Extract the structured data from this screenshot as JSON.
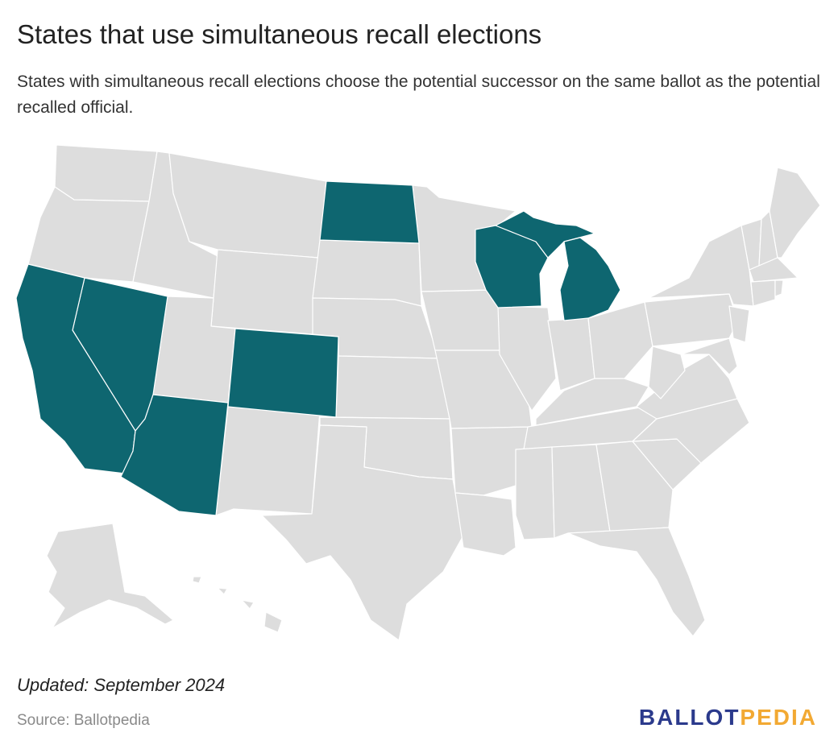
{
  "title": "States that use simultaneous recall elections",
  "subtitle": "States with simultaneous recall elections choose the potential successor on the same ballot as the potential recalled official.",
  "footer": {
    "updated": "Updated: September 2024",
    "source": "Source: Ballotpedia"
  },
  "logo": {
    "part1": "BALLOT",
    "part2": "PEDIA"
  },
  "colors": {
    "highlight": "#0e6670",
    "other": "#dddddd",
    "border": "#ffffff"
  },
  "map": {
    "highlighted_states": [
      "California",
      "Nevada",
      "Arizona",
      "Colorado",
      "North Dakota",
      "Wisconsin",
      "Michigan"
    ]
  }
}
